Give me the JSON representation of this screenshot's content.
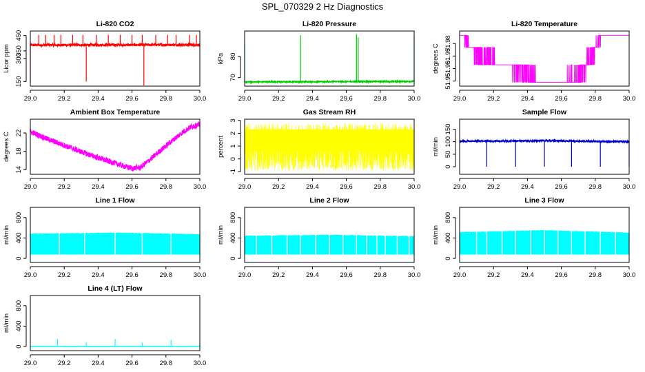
{
  "figure_title": "SPL_070329  2 Hz Diagnostics",
  "chart_data": [
    {
      "type": "line",
      "title": "Li-820 CO2",
      "xlabel": "",
      "ylabel": "Licor ppm",
      "xlim": [
        29.0,
        30.0
      ],
      "ylim": [
        120,
        480
      ],
      "x_ticks": [
        29.0,
        29.2,
        29.4,
        29.6,
        29.8,
        30.0
      ],
      "y_ticks": [
        150,
        300,
        350,
        450
      ],
      "color": "#ff0000",
      "style": "noisy_band",
      "baseline": [
        [
          29.0,
          388
        ],
        [
          30.0,
          390
        ]
      ],
      "noise": 8,
      "spikes": [
        {
          "x": 29.0,
          "y": 140
        },
        {
          "x": 29.05,
          "y": 455
        },
        {
          "x": 29.09,
          "y": 455
        },
        {
          "x": 29.14,
          "y": 455
        },
        {
          "x": 29.18,
          "y": 455
        },
        {
          "x": 29.25,
          "y": 455
        },
        {
          "x": 29.31,
          "y": 455
        },
        {
          "x": 29.33,
          "y": 150
        },
        {
          "x": 29.39,
          "y": 455
        },
        {
          "x": 29.46,
          "y": 455
        },
        {
          "x": 29.53,
          "y": 455
        },
        {
          "x": 29.6,
          "y": 455
        },
        {
          "x": 29.66,
          "y": 455
        },
        {
          "x": 29.67,
          "y": 125
        },
        {
          "x": 29.74,
          "y": 455
        },
        {
          "x": 29.81,
          "y": 455
        },
        {
          "x": 29.86,
          "y": 455
        },
        {
          "x": 29.94,
          "y": 455
        },
        {
          "x": 29.98,
          "y": 455
        }
      ]
    },
    {
      "type": "line",
      "title": "Li-820 Pressure",
      "xlabel": "",
      "ylabel": "kPa",
      "xlim": [
        29.0,
        30.0
      ],
      "ylim": [
        66,
        92
      ],
      "x_ticks": [
        29.0,
        29.2,
        29.4,
        29.6,
        29.8,
        30.0
      ],
      "y_ticks": [
        70,
        80
      ],
      "color": "#00cc00",
      "style": "noisy_band",
      "baseline": [
        [
          29.0,
          68.0
        ],
        [
          30.0,
          68.2
        ]
      ],
      "noise": 0.25,
      "spikes": [
        {
          "x": 29.0,
          "y": 86
        },
        {
          "x": 29.33,
          "y": 90
        },
        {
          "x": 29.66,
          "y": 90.5
        },
        {
          "x": 29.67,
          "y": 89
        },
        {
          "x": 30.0,
          "y": 90
        }
      ]
    },
    {
      "type": "line",
      "title": "Li-820 Temperature",
      "xlabel": "",
      "ylabel": "degrees C",
      "xlim": [
        29.0,
        30.0
      ],
      "ylim": [
        51.946,
        51.99
      ],
      "x_ticks": [
        29.0,
        29.2,
        29.4,
        29.6,
        29.8,
        30.0
      ],
      "y_ticks": [
        51.95,
        51.96,
        51.97,
        51.98
      ],
      "color": "#ff00ff",
      "style": "quantized",
      "levels": [
        51.949,
        51.963,
        51.977,
        51.9865
      ],
      "baseline": [
        [
          29.0,
          51.9865
        ],
        [
          29.02,
          51.9865
        ],
        [
          29.06,
          51.977
        ],
        [
          29.12,
          51.97
        ],
        [
          29.22,
          51.963
        ],
        [
          29.3,
          51.963
        ],
        [
          29.4,
          51.958
        ],
        [
          29.45,
          51.949
        ],
        [
          29.6,
          51.949
        ],
        [
          29.7,
          51.953
        ],
        [
          29.75,
          51.963
        ],
        [
          29.8,
          51.977
        ],
        [
          29.84,
          51.9865
        ],
        [
          30.0,
          51.9865
        ]
      ]
    },
    {
      "type": "line",
      "title": "Ambient Box Temperature",
      "xlabel": "",
      "ylabel": "degrees C",
      "xlim": [
        29.0,
        30.0
      ],
      "ylim": [
        13,
        25
      ],
      "x_ticks": [
        29.0,
        29.2,
        29.4,
        29.6,
        29.8,
        30.0
      ],
      "y_ticks": [
        14,
        18,
        22
      ],
      "color": "#ff00ff",
      "style": "noisy_band",
      "baseline": [
        [
          29.0,
          22.3
        ],
        [
          29.1,
          20.7
        ],
        [
          29.2,
          19.3
        ],
        [
          29.3,
          17.9
        ],
        [
          29.4,
          16.6
        ],
        [
          29.5,
          15.4
        ],
        [
          29.55,
          14.8
        ],
        [
          29.6,
          14.3
        ],
        [
          29.65,
          14.5
        ],
        [
          29.7,
          16.0
        ],
        [
          29.8,
          19.2
        ],
        [
          29.9,
          22.2
        ],
        [
          29.95,
          23.4
        ],
        [
          30.0,
          23.8
        ]
      ],
      "noise": 0.6
    },
    {
      "type": "line",
      "title": "Gas Stream RH",
      "xlabel": "",
      "ylabel": "percent",
      "xlim": [
        29.0,
        30.0
      ],
      "ylim": [
        -1.2,
        3.1
      ],
      "x_ticks": [
        29.0,
        29.2,
        29.4,
        29.6,
        29.8,
        30.0
      ],
      "y_ticks": [
        -1,
        0,
        1,
        2,
        3
      ],
      "color": "#ffff00",
      "style": "dense_noise",
      "band": [
        -0.9,
        2.8
      ]
    },
    {
      "type": "line",
      "title": "Sample Flow",
      "xlabel": "",
      "ylabel": "ml/min",
      "xlim": [
        29.0,
        30.0
      ],
      "ylim": [
        -30,
        190
      ],
      "x_ticks": [
        29.0,
        29.2,
        29.4,
        29.6,
        29.8,
        30.0
      ],
      "y_ticks": [
        0,
        50,
        100,
        150
      ],
      "color": "#0000cc",
      "style": "noisy_band",
      "baseline": [
        [
          29.0,
          102
        ],
        [
          29.5,
          104
        ],
        [
          30.0,
          100
        ]
      ],
      "noise": 3,
      "spikes": [
        {
          "x": 29.16,
          "y": 0
        },
        {
          "x": 29.33,
          "y": 0
        },
        {
          "x": 29.5,
          "y": 0
        },
        {
          "x": 29.66,
          "y": 0
        },
        {
          "x": 29.83,
          "y": 0
        },
        {
          "x": 30.0,
          "y": 0
        }
      ]
    },
    {
      "type": "area",
      "title": "Line 1 Flow",
      "xlabel": "",
      "ylabel": "ml/min",
      "xlim": [
        29.0,
        30.0
      ],
      "ylim": [
        -80,
        1000
      ],
      "x_ticks": [
        29.0,
        29.2,
        29.4,
        29.6,
        29.8,
        30.0
      ],
      "y_ticks": [
        0,
        400,
        800
      ],
      "color": "#00ffff",
      "style": "flow_band",
      "low": 80,
      "high": [
        [
          29.0,
          480
        ],
        [
          29.5,
          500
        ],
        [
          30.0,
          470
        ]
      ],
      "gaps": [
        29.17,
        29.32,
        29.5,
        29.66,
        29.83
      ]
    },
    {
      "type": "area",
      "title": "Line 2 Flow",
      "xlabel": "",
      "ylabel": "ml/min",
      "xlim": [
        29.0,
        30.0
      ],
      "ylim": [
        -80,
        1000
      ],
      "x_ticks": [
        29.0,
        29.2,
        29.4,
        29.6,
        29.8,
        30.0
      ],
      "y_ticks": [
        0,
        400,
        800
      ],
      "color": "#00ffff",
      "style": "flow_band",
      "low": 80,
      "high": [
        [
          29.0,
          440
        ],
        [
          29.5,
          460
        ],
        [
          30.0,
          430
        ]
      ],
      "gaps": [
        29.07,
        29.16,
        29.25,
        29.33,
        29.42,
        29.5,
        29.58,
        29.66,
        29.72,
        29.78,
        29.83,
        29.9,
        29.97
      ]
    },
    {
      "type": "area",
      "title": "Line 3 Flow",
      "xlabel": "",
      "ylabel": "ml/min",
      "xlim": [
        29.0,
        30.0
      ],
      "ylim": [
        -80,
        1000
      ],
      "x_ticks": [
        29.0,
        29.2,
        29.4,
        29.6,
        29.8,
        30.0
      ],
      "y_ticks": [
        0,
        400,
        800
      ],
      "color": "#00ffff",
      "style": "flow_band",
      "low": 80,
      "high": [
        [
          29.0,
          510
        ],
        [
          29.5,
          550
        ],
        [
          30.0,
          500
        ]
      ],
      "gaps": [
        29.1,
        29.16,
        29.25,
        29.33,
        29.42,
        29.5,
        29.58,
        29.66,
        29.74,
        29.83,
        29.92
      ]
    },
    {
      "type": "line",
      "title": "Line 4 (LT) Flow",
      "xlabel": "",
      "ylabel": "ml/min",
      "xlim": [
        29.0,
        30.0
      ],
      "ylim": [
        -80,
        1000
      ],
      "x_ticks": [
        29.0,
        29.2,
        29.4,
        29.6,
        29.8,
        30.0
      ],
      "y_ticks": [
        0,
        400,
        800
      ],
      "color": "#00ffff",
      "style": "noisy_band",
      "baseline": [
        [
          29.0,
          5
        ],
        [
          30.0,
          5
        ]
      ],
      "noise": 2,
      "spikes": [
        {
          "x": 29.16,
          "y": 150
        },
        {
          "x": 29.33,
          "y": 80
        },
        {
          "x": 29.5,
          "y": 150
        },
        {
          "x": 29.66,
          "y": 80
        },
        {
          "x": 29.83,
          "y": 130
        },
        {
          "x": 30.0,
          "y": 80
        }
      ]
    }
  ]
}
